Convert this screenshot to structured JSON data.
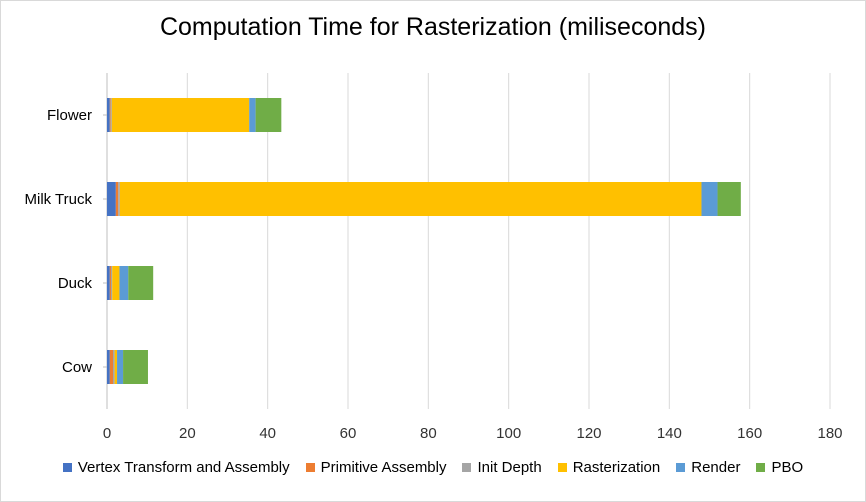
{
  "chart_data": {
    "type": "bar",
    "orientation": "horizontal",
    "stacked": true,
    "title": "Computation Time for Rasterization (miliseconds)",
    "xlabel": "",
    "ylabel": "",
    "xlim": [
      0,
      180
    ],
    "xticks": [
      0,
      20,
      40,
      60,
      80,
      100,
      120,
      140,
      160,
      180
    ],
    "grid": "vertical",
    "legend_position": "bottom",
    "categories": [
      "Flower",
      "Milk Truck",
      "Duck",
      "Cow"
    ],
    "series": [
      {
        "name": "Vertex Transform and Assembly",
        "color": "#4472C4",
        "values": [
          0.7,
          2.2,
          0.7,
          0.7
        ]
      },
      {
        "name": "Primitive Assembly",
        "color": "#ED7D31",
        "values": [
          0.2,
          0.6,
          0.3,
          0.8
        ]
      },
      {
        "name": "Init Depth",
        "color": "#A5A5A5",
        "values": [
          0.3,
          0.4,
          0.3,
          0.4
        ]
      },
      {
        "name": "Rasterization",
        "color": "#FFC000",
        "values": [
          34.2,
          144.8,
          1.8,
          0.6
        ]
      },
      {
        "name": "Render",
        "color": "#5B9BD5",
        "values": [
          1.6,
          4.0,
          2.2,
          1.5
        ]
      },
      {
        "name": "PBO",
        "color": "#70AD47",
        "values": [
          6.4,
          5.8,
          6.2,
          6.2
        ]
      }
    ]
  }
}
